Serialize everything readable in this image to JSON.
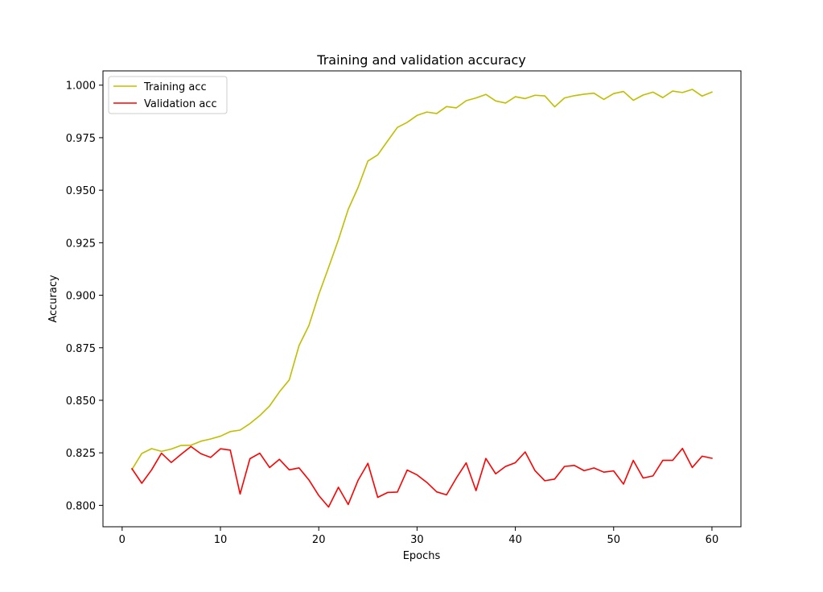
{
  "chart_data": {
    "type": "line",
    "title": "Training and validation accuracy",
    "xlabel": "Epochs",
    "ylabel": "Accuracy",
    "xlim": [
      -1.95,
      62.95
    ],
    "ylim": [
      0.7898,
      1.0068
    ],
    "xticks": [
      0,
      10,
      20,
      30,
      40,
      50,
      60
    ],
    "yticks": [
      0.8,
      0.825,
      0.85,
      0.875,
      0.9,
      0.925,
      0.95,
      0.975,
      1.0
    ],
    "ytick_labels": [
      "0.800",
      "0.825",
      "0.850",
      "0.875",
      "0.900",
      "0.925",
      "0.950",
      "0.975",
      "1.000"
    ],
    "grid": false,
    "legend_position": "upper-left",
    "x": [
      1,
      2,
      3,
      4,
      5,
      6,
      7,
      8,
      9,
      10,
      11,
      12,
      13,
      14,
      15,
      16,
      17,
      18,
      19,
      20,
      21,
      22,
      23,
      24,
      25,
      26,
      27,
      28,
      29,
      30,
      31,
      32,
      33,
      34,
      35,
      36,
      37,
      38,
      39,
      40,
      41,
      42,
      43,
      44,
      45,
      46,
      47,
      48,
      49,
      50,
      51,
      52,
      53,
      54,
      55,
      56,
      57,
      58,
      59,
      60
    ],
    "series": [
      {
        "name": "Training acc",
        "color": "#bfbf00",
        "values": [
          0.8171,
          0.8247,
          0.827,
          0.8257,
          0.8268,
          0.8285,
          0.8286,
          0.8305,
          0.8316,
          0.8329,
          0.8351,
          0.8358,
          0.8389,
          0.8427,
          0.8473,
          0.854,
          0.8597,
          0.8761,
          0.8856,
          0.9003,
          0.9132,
          0.9264,
          0.9409,
          0.9513,
          0.9639,
          0.9668,
          0.9734,
          0.9799,
          0.9823,
          0.9856,
          0.9872,
          0.9865,
          0.9898,
          0.9892,
          0.9926,
          0.9939,
          0.9956,
          0.9925,
          0.9915,
          0.9945,
          0.9936,
          0.9952,
          0.9949,
          0.9897,
          0.9939,
          0.995,
          0.9957,
          0.9962,
          0.9932,
          0.996,
          0.997,
          0.9928,
          0.9953,
          0.9967,
          0.9941,
          0.9972,
          0.9965,
          0.998,
          0.9948,
          0.9967
        ]
      },
      {
        "name": "Validation acc",
        "color": "#ff0000",
        "values": [
          0.8174,
          0.8105,
          0.8169,
          0.8248,
          0.8204,
          0.8243,
          0.828,
          0.8246,
          0.8228,
          0.8269,
          0.8263,
          0.8054,
          0.8222,
          0.8248,
          0.818,
          0.8219,
          0.8169,
          0.8178,
          0.8121,
          0.8047,
          0.7992,
          0.8086,
          0.8004,
          0.8119,
          0.82,
          0.8038,
          0.8061,
          0.8063,
          0.8168,
          0.8145,
          0.8109,
          0.8064,
          0.805,
          0.813,
          0.8202,
          0.807,
          0.8223,
          0.815,
          0.8185,
          0.8203,
          0.8254,
          0.8165,
          0.8117,
          0.8125,
          0.8185,
          0.819,
          0.8165,
          0.8178,
          0.8158,
          0.8164,
          0.8101,
          0.8214,
          0.813,
          0.814,
          0.8214,
          0.8214,
          0.8271,
          0.818,
          0.8234,
          0.8224
        ]
      }
    ]
  }
}
